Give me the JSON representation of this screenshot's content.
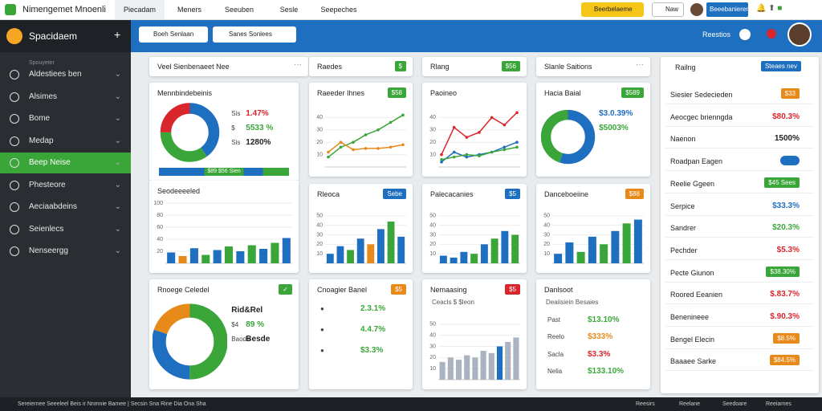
{
  "topbar": {
    "brand": "Nimengemet Mnoenli",
    "tabs": [
      "Piecadam",
      "Meners",
      "Seeuben",
      "Sesle",
      "Seepeches"
    ],
    "cta": "Beerbelaeme",
    "new": "Naw",
    "user": "Beeebanieren"
  },
  "header": {
    "app": "Spacidaem",
    "search1": "Boeh Senlaan",
    "search2": "Sanes Sonlees",
    "right": "Reestios"
  },
  "sidebar": {
    "section": "Spouyeter",
    "items": [
      "Aldestiees ben",
      "Alsimes",
      "Bome",
      "Medap",
      "Beep Neise",
      "Phesteore",
      "Aeciaabdeins",
      "Seienlecs",
      "Nenseergg"
    ],
    "active": 4
  },
  "cards": [
    {
      "title": "Veel Sienbenaeet Nee"
    },
    {
      "title": "Raedes",
      "badge": {
        "text": "$",
        "color": "#3aa63a"
      }
    },
    {
      "title": "Rlang",
      "badge": {
        "text": "$56",
        "color": "#3aa63a"
      }
    },
    {
      "title": "Slanle Saitions"
    }
  ],
  "panels": [
    {
      "title": "Mennbindebeinis",
      "chart": {
        "type": "donut",
        "values": [
          40,
          35,
          25
        ],
        "colors": [
          "#1f6fc0",
          "#3aa63a",
          "#d9262c"
        ]
      },
      "rows": [
        {
          "label": "Sis",
          "value": "1.47%",
          "color": "#d9262c"
        },
        {
          "label": "$",
          "value": "5533 %",
          "color": "#3aa63a"
        },
        {
          "label": "Sis",
          "value": "1280%",
          "color": "#222"
        }
      ],
      "footer": "$89 $56 Sien"
    },
    {
      "title": "Seodeeeeled",
      "chart": {
        "type": "bar",
        "ylim": [
          0,
          100
        ],
        "yticks": [
          100,
          80,
          60,
          40,
          20
        ],
        "values": [
          18,
          12,
          25,
          14,
          22,
          28,
          20,
          30,
          24,
          34,
          42
        ],
        "colors": [
          "#1f6fc0",
          "#e88a1a",
          "#1f6fc0",
          "#3aa63a",
          "#1f6fc0",
          "#3aa63a",
          "#1f6fc0",
          "#3aa63a",
          "#1f6fc0",
          "#3aa63a",
          "#1f6fc0"
        ]
      }
    },
    {
      "title": "Raeeder Ihnes",
      "badge": {
        "text": "$58",
        "color": "#3aa63a"
      },
      "chart": {
        "type": "line",
        "ylim": [
          0,
          50
        ],
        "yticks": [
          40,
          30,
          20,
          10
        ],
        "series": [
          {
            "color": "#3aa63a",
            "values": [
              8,
              16,
              20,
              26,
              30,
              36,
              42
            ]
          },
          {
            "color": "#e88a1a",
            "values": [
              12,
              20,
              14,
              15,
              15,
              16,
              18
            ]
          }
        ]
      }
    },
    {
      "title": "Paoineo",
      "chart": {
        "type": "line",
        "ylim": [
          0,
          50
        ],
        "yticks": [
          40,
          30,
          20,
          10
        ],
        "series": [
          {
            "color": "#d9262c",
            "values": [
              10,
              32,
              24,
              28,
              40,
              34,
              44
            ]
          },
          {
            "color": "#1f6fc0",
            "values": [
              4,
              12,
              8,
              10,
              12,
              16,
              20
            ]
          },
          {
            "color": "#3aa63a",
            "values": [
              6,
              8,
              10,
              9,
              12,
              14,
              16
            ]
          }
        ]
      }
    },
    {
      "title": "Hacia Baial",
      "badge": {
        "text": "$589",
        "color": "#3aa63a"
      },
      "chart": {
        "type": "donut",
        "values": [
          55,
          45
        ],
        "colors": [
          "#1f6fc0",
          "#3aa63a"
        ]
      },
      "rows": [
        {
          "label": "",
          "value": "$3.0.39%",
          "color": "#1f6fc0"
        },
        {
          "label": "",
          "value": "$5003%",
          "color": "#3aa63a"
        }
      ]
    },
    {
      "title": "Rleoca",
      "badge": {
        "text": "Sebe",
        "color": "#1f6fc0"
      },
      "chart": {
        "type": "bar",
        "ylim": [
          0,
          60
        ],
        "yticks": [
          50,
          40,
          30,
          20,
          10
        ],
        "values": [
          10,
          18,
          14,
          26,
          20,
          36,
          44,
          28
        ],
        "colors": [
          "#1f6fc0",
          "#1f6fc0",
          "#3aa63a",
          "#1f6fc0",
          "#e88a1a",
          "#1f6fc0",
          "#3aa63a",
          "#1f6fc0"
        ]
      }
    },
    {
      "title": "Palecacanies",
      "badge": {
        "text": "$5",
        "color": "#1f6fc0"
      },
      "chart": {
        "type": "bar",
        "ylim": [
          0,
          60
        ],
        "yticks": [
          50,
          40,
          30,
          20,
          10
        ],
        "values": [
          8,
          6,
          12,
          10,
          20,
          26,
          34,
          30
        ],
        "colors": [
          "#1f6fc0",
          "#1f6fc0",
          "#1f6fc0",
          "#3aa63a",
          "#1f6fc0",
          "#3aa63a",
          "#1f6fc0",
          "#3aa63a"
        ]
      }
    },
    {
      "title": "Danceboeiine",
      "badge": {
        "text": "$88",
        "color": "#e88a1a"
      },
      "chart": {
        "type": "bar",
        "ylim": [
          0,
          60
        ],
        "yticks": [
          50,
          40,
          30,
          20,
          10
        ],
        "values": [
          10,
          22,
          12,
          28,
          20,
          34,
          42,
          46
        ],
        "colors": [
          "#1f6fc0",
          "#1f6fc0",
          "#3aa63a",
          "#1f6fc0",
          "#3aa63a",
          "#1f6fc0",
          "#3aa63a",
          "#1f6fc0"
        ]
      }
    },
    {
      "title": "Rnoege Celedel",
      "badge": {
        "text": "✓",
        "color": "#3aa63a"
      },
      "chart": {
        "type": "donut",
        "values": [
          50,
          30,
          20
        ],
        "colors": [
          "#3aa63a",
          "#1f6fc0",
          "#e88a1a"
        ]
      },
      "rows": [
        {
          "label": "",
          "value": "Rid&Rel",
          "color": "#222"
        },
        {
          "label": "$4",
          "value": "89 %",
          "color": "#3aa63a"
        },
        {
          "label": "Baode",
          "value": "Besde",
          "color": "#222"
        }
      ]
    },
    {
      "title": "Cnoagier Banel",
      "badge": {
        "text": "$5",
        "color": "#e88a1a"
      },
      "rows": [
        {
          "label": "●",
          "value": "2.3.1%",
          "color": "#3aa63a"
        },
        {
          "label": "●",
          "value": "4.4.7%",
          "color": "#3aa63a"
        },
        {
          "label": "●",
          "value": "$3.3%",
          "color": "#3aa63a"
        }
      ]
    },
    {
      "title": "Nemaasing",
      "badge": {
        "text": "$5",
        "color": "#d9262c"
      },
      "subtitle": "Ceacls $ $leon",
      "chart": {
        "type": "bar",
        "ylim": [
          0,
          60
        ],
        "yticks": [
          50,
          40,
          30,
          20,
          10
        ],
        "values": [
          16,
          20,
          18,
          22,
          20,
          26,
          24,
          30,
          34,
          38
        ],
        "colors": [
          "#aab4c0",
          "#aab4c0",
          "#aab4c0",
          "#aab4c0",
          "#aab4c0",
          "#aab4c0",
          "#aab4c0",
          "#1f6fc0",
          "#aab4c0",
          "#aab4c0"
        ]
      }
    },
    {
      "title": "Danlsoot",
      "subtitle": "Deaiisiein Besaies",
      "rows": [
        {
          "label": "Past",
          "value": "$13.10%",
          "color": "#3aa63a"
        },
        {
          "label": "Reelo",
          "value": "$333%",
          "color": "#e88a1a"
        },
        {
          "label": "Sacla",
          "value": "$3.3%",
          "color": "#d9262c"
        },
        {
          "label": "Nelia",
          "value": "$133.10%",
          "color": "#3aa63a"
        }
      ]
    }
  ],
  "side_list": {
    "title": "Railng",
    "button": "Steaes nev",
    "items": [
      {
        "label": "Siesier Sedecieden",
        "value": "$33",
        "color": "#e88a1a",
        "kind": "badge"
      },
      {
        "label": "Aeocgec brienngda",
        "value": "$80.3%",
        "color": "#d9262c",
        "kind": "text"
      },
      {
        "label": "Naenon",
        "value": "1500%",
        "color": "#222",
        "kind": "text"
      },
      {
        "label": "Roadpan Eagen",
        "color": "#1f6fc0",
        "kind": "toggle"
      },
      {
        "label": "Reelie Ggeen",
        "value": "$45 Sees",
        "color": "#3aa63a",
        "kind": "badge"
      },
      {
        "label": "Serpice",
        "value": "$33.3%",
        "color": "#1f6fc0",
        "kind": "text"
      },
      {
        "label": "Sandrer",
        "value": "$20.3%",
        "color": "#3aa63a",
        "kind": "text"
      },
      {
        "label": "Pechder",
        "value": "$5.3%",
        "color": "#d9262c",
        "kind": "text"
      },
      {
        "label": "Pecte Giunon",
        "value": "$38.30%",
        "color": "#3aa63a",
        "kind": "badge"
      },
      {
        "label": "Roored Eeanien",
        "value": "$.83.7%",
        "color": "#d9262c",
        "kind": "text"
      },
      {
        "label": "Benenineee",
        "value": "$.90.3%",
        "color": "#d9262c",
        "kind": "text"
      },
      {
        "label": "Bengel Elecin",
        "value": "$8.5%",
        "color": "#e88a1a",
        "kind": "badge"
      },
      {
        "label": "Baaaee Sarke",
        "value": "$84.5%",
        "color": "#e88a1a",
        "kind": "badge"
      }
    ]
  },
  "footer": {
    "left": "Sereiernee Seeeleel Beis ir Nnmnie Bamee | Secsin Sna Rine Dia Ona Sha",
    "links": [
      "Reesirs",
      "Reelane",
      "Seedoare",
      "Reeiarnes"
    ]
  }
}
